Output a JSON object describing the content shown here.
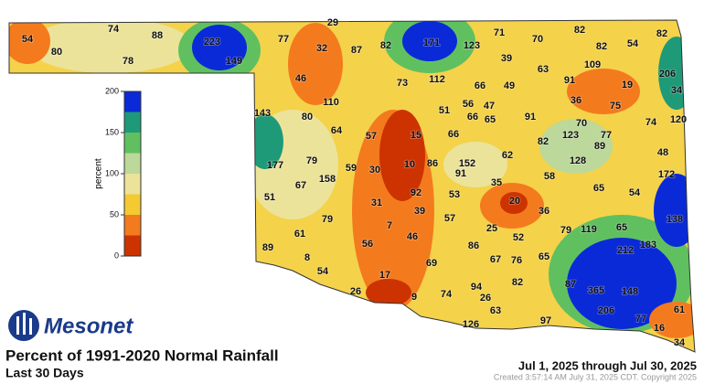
{
  "header": {
    "logo": "Mesonet",
    "title": "Percent of 1991-2020 Normal Rainfall",
    "subtitle": "Last 30 Days",
    "date_range": "Jul 1, 2025 through Jul 30, 2025",
    "created": "Created 3:57:14 AM July 31, 2025 CDT. Copyright 2025"
  },
  "colorbar": {
    "label": "percent",
    "lim": [
      0,
      200
    ],
    "ticks": [
      0,
      50,
      100,
      150,
      200
    ],
    "step": 25,
    "colors": [
      "#cc3300",
      "#f47a1e",
      "#f4c932",
      "#ece39a",
      "#bcd89a",
      "#60c060",
      "#1e9a78",
      "#0a2ad8"
    ]
  },
  "stations": [
    54,
    80,
    74,
    78,
    88,
    223,
    149,
    77,
    29,
    32,
    87,
    82,
    171,
    123,
    71,
    70,
    82,
    82,
    54,
    82,
    206,
    39,
    63,
    109,
    91,
    46,
    73,
    112,
    66,
    49,
    19,
    34,
    110,
    56,
    47,
    36,
    75,
    143,
    80,
    51,
    66,
    65,
    91,
    120,
    64,
    57,
    15,
    66,
    70,
    77,
    74,
    123,
    89,
    82,
    177,
    79,
    59,
    30,
    10,
    86,
    152,
    91,
    62,
    128,
    48,
    158,
    67,
    58,
    172,
    35,
    65,
    54,
    51,
    31,
    92,
    53,
    20,
    36,
    79,
    39,
    57,
    138,
    61,
    7,
    25,
    79,
    119,
    65,
    52,
    46,
    89,
    56,
    86,
    212,
    183,
    8,
    69,
    67,
    76,
    65,
    54,
    17,
    82,
    26,
    9,
    74,
    94,
    87,
    365,
    148,
    26,
    63,
    206,
    61,
    126,
    97,
    77,
    16,
    34
  ]
}
